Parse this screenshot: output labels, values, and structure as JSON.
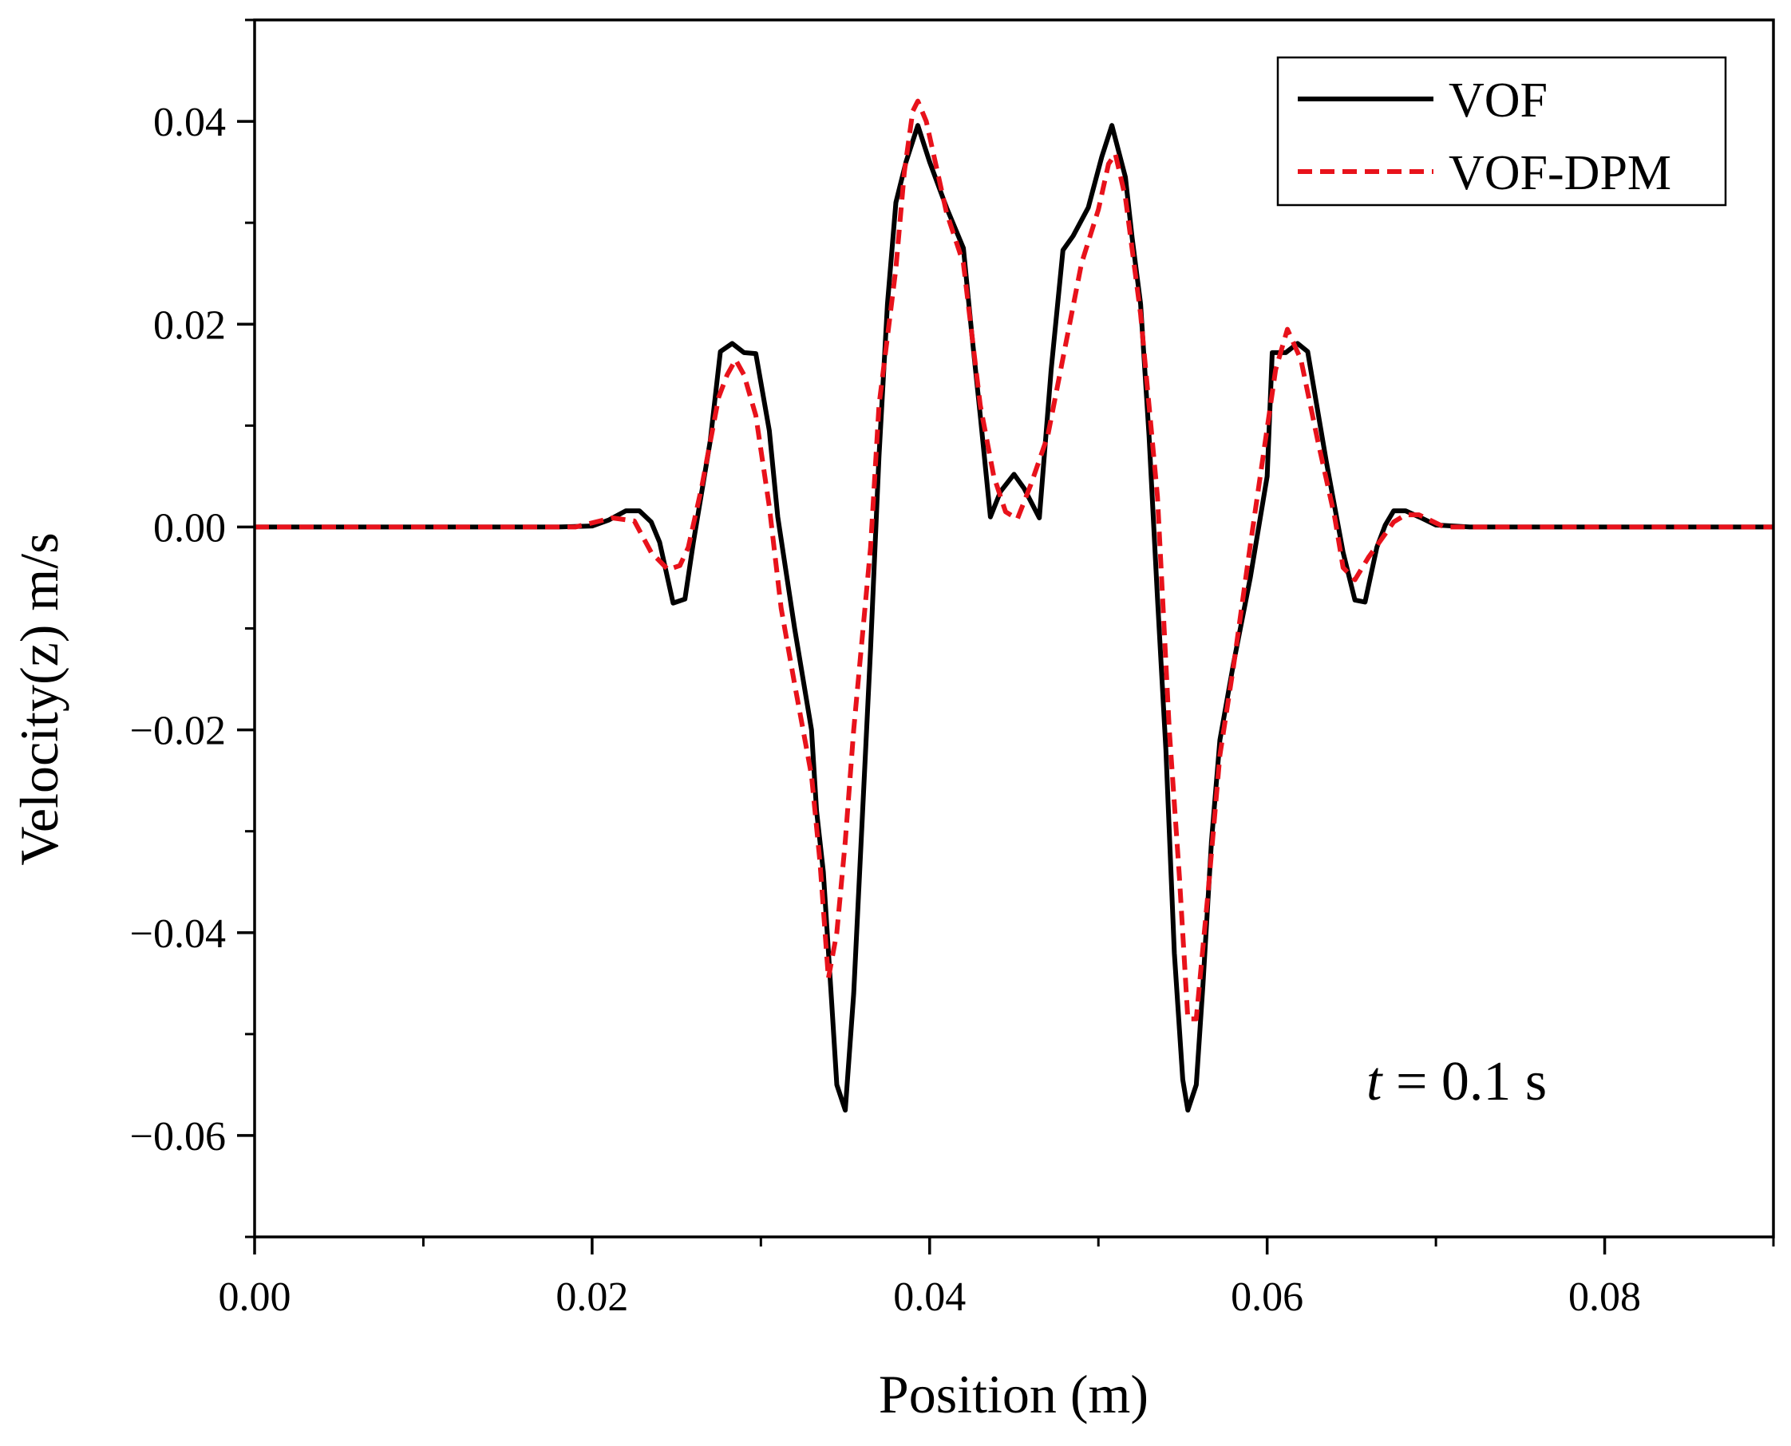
{
  "chart_data": {
    "type": "line",
    "title": "",
    "xlabel": "Position (m)",
    "ylabel": "Velocity(z) m/s",
    "xlim": [
      0,
      0.09
    ],
    "ylim": [
      -0.07,
      0.05
    ],
    "xticks": [
      0,
      0.02,
      0.04,
      0.06,
      0.08
    ],
    "xtick_labels": [
      "0.00",
      "0.02",
      "0.04",
      "0.06",
      "0.08"
    ],
    "xminor": [
      0.01,
      0.03,
      0.05,
      0.07,
      0.09
    ],
    "yticks": [
      -0.06,
      -0.04,
      -0.02,
      0,
      0.02,
      0.04
    ],
    "ytick_labels": [
      "−0.06",
      "−0.04",
      "−0.02",
      "0.00",
      "0.02",
      "0.04"
    ],
    "yminor": [
      -0.07,
      -0.05,
      -0.03,
      -0.01,
      0.01,
      0.03,
      0.05
    ],
    "grid": false,
    "legend_position": "top-right",
    "annotation": {
      "italic": "t",
      "rest": " = 0.1 s"
    },
    "series": [
      {
        "name": "VOF",
        "color": "#000000",
        "style": "solid",
        "points": [
          [
            0,
            0
          ],
          [
            0.01,
            0
          ],
          [
            0.018,
            0
          ],
          [
            0.02,
            0.0001
          ],
          [
            0.021,
            0.0007
          ],
          [
            0.022,
            0.0016
          ],
          [
            0.0228,
            0.0016
          ],
          [
            0.0235,
            0.0005
          ],
          [
            0.024,
            -0.0015
          ],
          [
            0.0248,
            -0.0075
          ],
          [
            0.0255,
            -0.0071
          ],
          [
            0.026,
            -0.0015
          ],
          [
            0.027,
            0.0085
          ],
          [
            0.0276,
            0.0173
          ],
          [
            0.0283,
            0.0181
          ],
          [
            0.029,
            0.0172
          ],
          [
            0.0297,
            0.0171
          ],
          [
            0.0305,
            0.0095
          ],
          [
            0.031,
            0.001
          ],
          [
            0.032,
            -0.01
          ],
          [
            0.033,
            -0.02
          ],
          [
            0.0333,
            -0.028
          ],
          [
            0.0337,
            -0.034
          ],
          [
            0.0342,
            -0.047
          ],
          [
            0.0345,
            -0.055
          ],
          [
            0.035,
            -0.0575
          ],
          [
            0.0355,
            -0.046
          ],
          [
            0.036,
            -0.029
          ],
          [
            0.0365,
            -0.012
          ],
          [
            0.037,
            0.007
          ],
          [
            0.0375,
            0.022
          ],
          [
            0.038,
            0.032
          ],
          [
            0.0386,
            0.036
          ],
          [
            0.0393,
            0.0396
          ],
          [
            0.04,
            0.036
          ],
          [
            0.041,
            0.0315
          ],
          [
            0.042,
            0.0275
          ],
          [
            0.0425,
            0.019
          ],
          [
            0.043,
            0.011
          ],
          [
            0.0436,
            0.001
          ],
          [
            0.0442,
            0.0035
          ],
          [
            0.045,
            0.0052
          ],
          [
            0.0456,
            0.0038
          ],
          [
            0.0465,
            0.0009
          ],
          [
            0.0472,
            0.0155
          ],
          [
            0.0479,
            0.0273
          ],
          [
            0.0485,
            0.0287
          ],
          [
            0.0494,
            0.0315
          ],
          [
            0.0502,
            0.0365
          ],
          [
            0.0508,
            0.0396
          ],
          [
            0.0516,
            0.0345
          ],
          [
            0.052,
            0.0285
          ],
          [
            0.0525,
            0.022
          ],
          [
            0.053,
            0.009
          ],
          [
            0.0535,
            -0.007
          ],
          [
            0.054,
            -0.022
          ],
          [
            0.0545,
            -0.042
          ],
          [
            0.055,
            -0.0545
          ],
          [
            0.0553,
            -0.0575
          ],
          [
            0.0558,
            -0.055
          ],
          [
            0.0562,
            -0.045
          ],
          [
            0.0567,
            -0.031
          ],
          [
            0.0572,
            -0.021
          ],
          [
            0.058,
            -0.0135
          ],
          [
            0.059,
            -0.005
          ],
          [
            0.06,
            0.005
          ],
          [
            0.0603,
            0.0172
          ],
          [
            0.0611,
            0.0172
          ],
          [
            0.0618,
            0.0181
          ],
          [
            0.0624,
            0.0173
          ],
          [
            0.0635,
            0.0065
          ],
          [
            0.0645,
            -0.0025
          ],
          [
            0.0652,
            -0.0072
          ],
          [
            0.0658,
            -0.0074
          ],
          [
            0.0665,
            -0.002
          ],
          [
            0.067,
            0.0002
          ],
          [
            0.0675,
            0.0016
          ],
          [
            0.0682,
            0.0016
          ],
          [
            0.069,
            0.001
          ],
          [
            0.07,
            0.0002
          ],
          [
            0.072,
            0
          ],
          [
            0.08,
            0
          ],
          [
            0.09,
            0
          ]
        ]
      },
      {
        "name": "VOF-DPM",
        "color": "#e8121b",
        "style": "dashed",
        "points": [
          [
            0,
            0
          ],
          [
            0.01,
            0
          ],
          [
            0.019,
            0
          ],
          [
            0.0212,
            0.0009
          ],
          [
            0.0225,
            0.0006
          ],
          [
            0.0235,
            -0.0025
          ],
          [
            0.0245,
            -0.0042
          ],
          [
            0.0252,
            -0.0038
          ],
          [
            0.0257,
            -0.002
          ],
          [
            0.0265,
            0.004
          ],
          [
            0.0275,
            0.0128
          ],
          [
            0.028,
            0.015
          ],
          [
            0.0285,
            0.0165
          ],
          [
            0.029,
            0.015
          ],
          [
            0.0297,
            0.011
          ],
          [
            0.0305,
            0.002
          ],
          [
            0.0312,
            -0.008
          ],
          [
            0.032,
            -0.0155
          ],
          [
            0.033,
            -0.0245
          ],
          [
            0.0335,
            -0.033
          ],
          [
            0.034,
            -0.0445
          ],
          [
            0.0345,
            -0.04
          ],
          [
            0.035,
            -0.031
          ],
          [
            0.0355,
            -0.02
          ],
          [
            0.0365,
            -0.002
          ],
          [
            0.037,
            0.012
          ],
          [
            0.038,
            0.0255
          ],
          [
            0.0385,
            0.035
          ],
          [
            0.039,
            0.041
          ],
          [
            0.0393,
            0.042
          ],
          [
            0.0398,
            0.04
          ],
          [
            0.041,
            0.031
          ],
          [
            0.042,
            0.026
          ],
          [
            0.043,
            0.012
          ],
          [
            0.0438,
            0.005
          ],
          [
            0.0445,
            0.0015
          ],
          [
            0.0452,
            0.0008
          ],
          [
            0.046,
            0.0042
          ],
          [
            0.047,
            0.009
          ],
          [
            0.048,
            0.0175
          ],
          [
            0.049,
            0.026
          ],
          [
            0.05,
            0.0313
          ],
          [
            0.0506,
            0.0358
          ],
          [
            0.051,
            0.0368
          ],
          [
            0.0516,
            0.0325
          ],
          [
            0.0525,
            0.021
          ],
          [
            0.0535,
            0.003
          ],
          [
            0.0542,
            -0.02
          ],
          [
            0.0548,
            -0.0345
          ],
          [
            0.0553,
            -0.0485
          ],
          [
            0.0558,
            -0.0485
          ],
          [
            0.0565,
            -0.036
          ],
          [
            0.0572,
            -0.0225
          ],
          [
            0.058,
            -0.0138
          ],
          [
            0.059,
            -0.0018
          ],
          [
            0.0605,
            0.0155
          ],
          [
            0.0612,
            0.0195
          ],
          [
            0.062,
            0.0165
          ],
          [
            0.063,
            0.0085
          ],
          [
            0.064,
            0.001
          ],
          [
            0.0645,
            -0.004
          ],
          [
            0.0652,
            -0.0052
          ],
          [
            0.066,
            -0.003
          ],
          [
            0.0675,
            0.0005
          ],
          [
            0.0682,
            0.0012
          ],
          [
            0.069,
            0.0012
          ],
          [
            0.0705,
            0
          ],
          [
            0.08,
            0
          ],
          [
            0.09,
            0
          ]
        ]
      }
    ]
  }
}
